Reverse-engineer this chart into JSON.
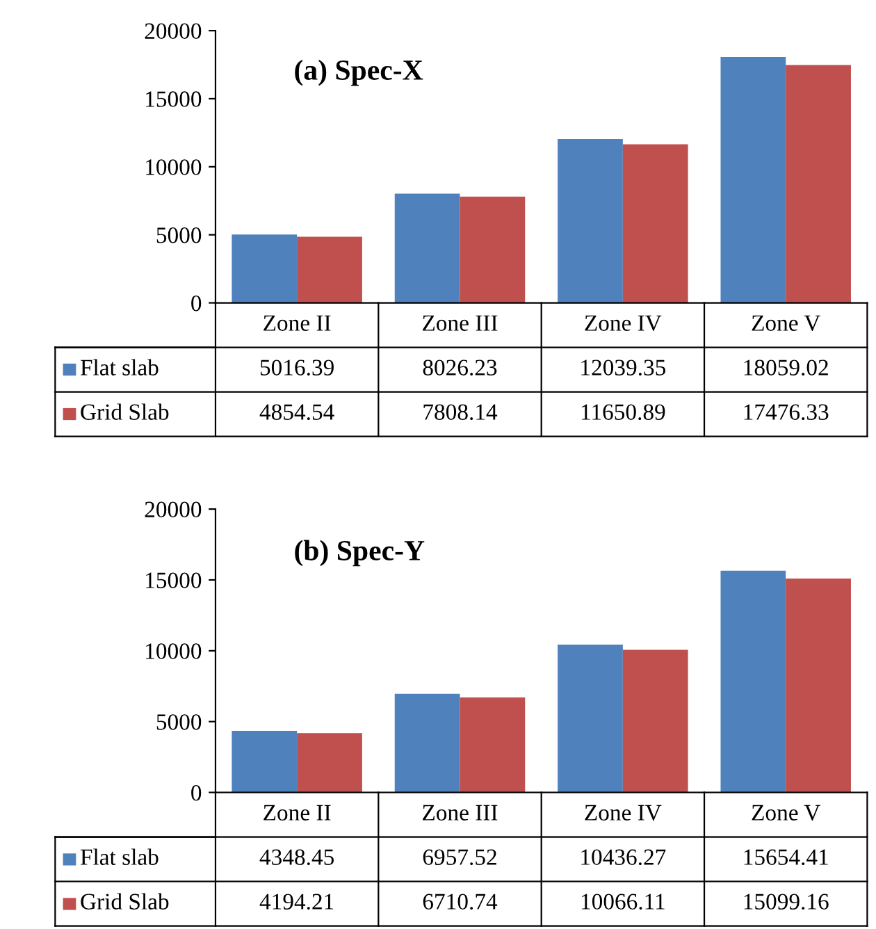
{
  "chart_data": [
    {
      "type": "bar",
      "title": "(a) Spec-X",
      "categories": [
        "Zone II",
        "Zone III",
        "Zone IV",
        "Zone V"
      ],
      "series": [
        {
          "name": "Flat slab",
          "color": "#4f81bd",
          "values": [
            5016.39,
            8026.23,
            12039.35,
            18059.02
          ]
        },
        {
          "name": "Grid Slab",
          "color": "#c0504d",
          "values": [
            4854.54,
            7808.14,
            11650.89,
            17476.33
          ]
        }
      ],
      "ylim": [
        0,
        20000
      ],
      "yticks": [
        0,
        5000,
        10000,
        15000,
        20000
      ],
      "grid": false,
      "data_labels": true,
      "legend": "bottom left"
    },
    {
      "type": "bar",
      "title": "(b) Spec-Y",
      "categories": [
        "Zone II",
        "Zone III",
        "Zone IV",
        "Zone V"
      ],
      "series": [
        {
          "name": "Flat slab",
          "color": "#4f81bd",
          "values": [
            4348.45,
            6957.52,
            10436.27,
            15654.41
          ]
        },
        {
          "name": "Grid Slab",
          "color": "#c0504d",
          "values": [
            4194.21,
            6710.74,
            10066.11,
            15099.16
          ]
        }
      ],
      "ylim": [
        0,
        20000
      ],
      "yticks": [
        0,
        5000,
        10000,
        15000,
        20000
      ],
      "grid": false,
      "data_labels": true,
      "legend": "bottom left"
    }
  ]
}
